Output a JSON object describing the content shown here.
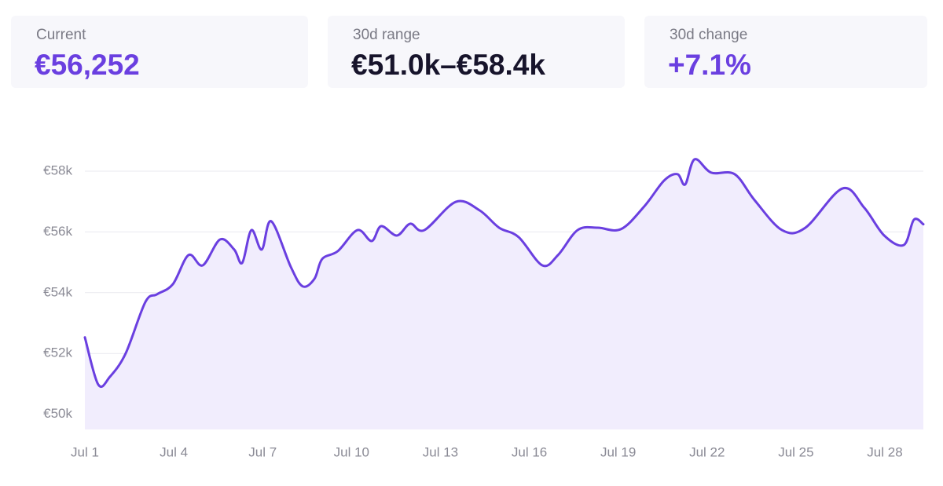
{
  "cards": [
    {
      "label": "Current",
      "value": "€56,252"
    },
    {
      "label": "30d range",
      "value": "€51.0k–€58.4k"
    },
    {
      "label": "30d change",
      "value": "+7.1%"
    }
  ],
  "chart_data": {
    "type": "area",
    "color": "#6a3fe0",
    "fill": "#f1edfd",
    "grid": true,
    "x": [
      1,
      1.45,
      1.85,
      2.38,
      3.04,
      3.44,
      3.97,
      4.5,
      4.98,
      5.56,
      6.04,
      6.31,
      6.62,
      6.97,
      7.29,
      7.95,
      8.35,
      8.75,
      9.01,
      9.54,
      10.2,
      10.68,
      11.0,
      11.53,
      11.98,
      12.46,
      13.52,
      14.32,
      14.98,
      15.64,
      16.44,
      16.97,
      17.63,
      18.29,
      19.09,
      19.88,
      20.55,
      21.0,
      21.26,
      21.58,
      22.14,
      22.93,
      23.6,
      24.53,
      25.32,
      26.57,
      27.31,
      27.98,
      28.64,
      28.98,
      29.3
    ],
    "series": [
      {
        "values": [
          52530,
          50980,
          51240,
          52010,
          53690,
          53950,
          54280,
          55240,
          54900,
          55750,
          55420,
          54980,
          56060,
          55420,
          56350,
          54850,
          54210,
          54460,
          55110,
          55370,
          56060,
          55700,
          56190,
          55880,
          56270,
          56060,
          56990,
          56710,
          56140,
          55830,
          54900,
          55240,
          56060,
          56140,
          56090,
          56840,
          57690,
          57900,
          57560,
          58390,
          57950,
          57900,
          57050,
          56060,
          56140,
          57430,
          56790,
          55880,
          55570,
          56400,
          56252
        ]
      }
    ],
    "xlim": [
      1,
      29.3
    ],
    "xticks": [
      {
        "value": 1,
        "label": "Jul 1"
      },
      {
        "value": 4,
        "label": "Jul 4"
      },
      {
        "value": 7,
        "label": "Jul 7"
      },
      {
        "value": 10,
        "label": "Jul 10"
      },
      {
        "value": 13,
        "label": "Jul 13"
      },
      {
        "value": 16,
        "label": "Jul 16"
      },
      {
        "value": 19,
        "label": "Jul 19"
      },
      {
        "value": 22,
        "label": "Jul 22"
      },
      {
        "value": 25,
        "label": "Jul 25"
      },
      {
        "value": 28,
        "label": "Jul 28"
      }
    ],
    "ylim": [
      49500,
      58500
    ],
    "yticks": [
      {
        "value": 50000,
        "label": "€50k"
      },
      {
        "value": 52000,
        "label": "€52k"
      },
      {
        "value": 54000,
        "label": "€54k"
      },
      {
        "value": 56000,
        "label": "€56k"
      },
      {
        "value": 58000,
        "label": "€58k"
      }
    ]
  }
}
